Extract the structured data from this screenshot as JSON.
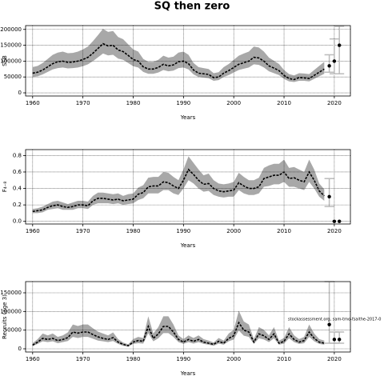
{
  "chart_data": [
    {
      "type": "line",
      "title": "SQ then zero",
      "ylabel": "SSB",
      "xlabel": "Years",
      "xlim": [
        1958.6,
        2023.2
      ],
      "xticks": [
        1960,
        1970,
        1980,
        1990,
        2000,
        2010,
        2020
      ],
      "ylim": [
        -10000,
        212000
      ],
      "yticks": [
        0,
        50000,
        100000,
        150000,
        200000
      ],
      "grid": true,
      "x": [
        1960,
        1961,
        1962,
        1963,
        1964,
        1965,
        1966,
        1967,
        1968,
        1969,
        1970,
        1971,
        1972,
        1973,
        1974,
        1975,
        1976,
        1977,
        1978,
        1979,
        1980,
        1981,
        1982,
        1983,
        1984,
        1985,
        1986,
        1987,
        1988,
        1989,
        1990,
        1991,
        1992,
        1993,
        1994,
        1995,
        1996,
        1997,
        1998,
        1999,
        2000,
        2001,
        2002,
        2003,
        2004,
        2005,
        2006,
        2007,
        2008,
        2009,
        2010,
        2011,
        2012,
        2013,
        2014,
        2015,
        2016,
        2017,
        2018
      ],
      "color": "#000000",
      "band_color": "#a8a8a8",
      "values": [
        62000,
        65000,
        72000,
        82000,
        92000,
        98000,
        100000,
        96000,
        97000,
        100000,
        105000,
        112000,
        125000,
        140000,
        155000,
        148000,
        150000,
        135000,
        130000,
        118000,
        105000,
        100000,
        82000,
        75000,
        75000,
        80000,
        90000,
        85000,
        88000,
        98000,
        100000,
        92000,
        72000,
        62000,
        60000,
        58000,
        48000,
        50000,
        62000,
        70000,
        80000,
        90000,
        95000,
        100000,
        112000,
        110000,
        100000,
        85000,
        78000,
        70000,
        55000,
        45000,
        42000,
        48000,
        47000,
        45000,
        55000,
        65000,
        75000
      ],
      "lower": [
        50000,
        52000,
        58000,
        66000,
        74000,
        78000,
        80000,
        77000,
        78000,
        80000,
        84000,
        90000,
        100000,
        112000,
        124000,
        118000,
        120000,
        108000,
        104000,
        94000,
        84000,
        80000,
        66000,
        60000,
        60000,
        64000,
        72000,
        68000,
        70000,
        78000,
        80000,
        74000,
        58000,
        50000,
        48000,
        46000,
        38000,
        40000,
        50000,
        56000,
        64000,
        72000,
        76000,
        80000,
        90000,
        88000,
        80000,
        68000,
        62000,
        56000,
        44000,
        36000,
        34000,
        38000,
        38000,
        36000,
        44000,
        52000,
        60000
      ],
      "upper": [
        81000,
        85000,
        94000,
        107000,
        120000,
        127000,
        130000,
        125000,
        126000,
        130000,
        137000,
        146000,
        163000,
        182000,
        202000,
        192000,
        195000,
        176000,
        169000,
        153000,
        137000,
        130000,
        107000,
        98000,
        98000,
        104000,
        117000,
        111000,
        114000,
        127000,
        130000,
        120000,
        94000,
        81000,
        78000,
        75000,
        62000,
        65000,
        81000,
        91000,
        104000,
        117000,
        124000,
        130000,
        146000,
        143000,
        130000,
        111000,
        101000,
        91000,
        72000,
        59000,
        55000,
        62000,
        61000,
        59000,
        72000,
        85000,
        98000
      ],
      "projection": {
        "x": [
          2019,
          2020,
          2021
        ],
        "values": [
          85000,
          100000,
          150000
        ],
        "lower": [
          65000,
          60000,
          60000
        ],
        "upper": [
          120000,
          170000,
          210000
        ],
        "color": "#000000",
        "bar_color": "#bbbbbb"
      }
    },
    {
      "type": "line",
      "ylabel": "F₄₋₈",
      "xlabel": "Years",
      "xlim": [
        1958.6,
        2023.2
      ],
      "xticks": [
        1960,
        1970,
        1980,
        1990,
        2000,
        2010,
        2020
      ],
      "ylim": [
        -0.032,
        0.872
      ],
      "yticks": [
        {
          "value": 0,
          "label": "0.0"
        },
        0.2,
        0.4,
        0.6,
        0.8
      ],
      "grid": true,
      "x": [
        1960,
        1961,
        1962,
        1963,
        1964,
        1965,
        1966,
        1967,
        1968,
        1969,
        1970,
        1971,
        1972,
        1973,
        1974,
        1975,
        1976,
        1977,
        1978,
        1979,
        1980,
        1981,
        1982,
        1983,
        1984,
        1985,
        1986,
        1987,
        1988,
        1989,
        1990,
        1991,
        1992,
        1993,
        1994,
        1995,
        1996,
        1997,
        1998,
        1999,
        2000,
        2001,
        2002,
        2003,
        2004,
        2005,
        2006,
        2007,
        2008,
        2009,
        2010,
        2011,
        2012,
        2013,
        2014,
        2015,
        2016,
        2017,
        2018
      ],
      "color": "#000000",
      "band_color": "#a8a8a8",
      "values": [
        0.12,
        0.13,
        0.14,
        0.17,
        0.19,
        0.2,
        0.18,
        0.17,
        0.18,
        0.2,
        0.2,
        0.19,
        0.25,
        0.28,
        0.28,
        0.27,
        0.26,
        0.27,
        0.25,
        0.26,
        0.27,
        0.33,
        0.35,
        0.42,
        0.43,
        0.43,
        0.48,
        0.47,
        0.43,
        0.4,
        0.5,
        0.63,
        0.57,
        0.5,
        0.45,
        0.46,
        0.4,
        0.37,
        0.36,
        0.37,
        0.38,
        0.47,
        0.43,
        0.4,
        0.4,
        0.42,
        0.52,
        0.54,
        0.56,
        0.56,
        0.6,
        0.52,
        0.53,
        0.5,
        0.48,
        0.6,
        0.5,
        0.37,
        0.31
      ],
      "lower": [
        0.1,
        0.1,
        0.11,
        0.14,
        0.15,
        0.16,
        0.14,
        0.14,
        0.14,
        0.16,
        0.16,
        0.15,
        0.2,
        0.22,
        0.22,
        0.22,
        0.21,
        0.22,
        0.2,
        0.21,
        0.22,
        0.26,
        0.28,
        0.34,
        0.34,
        0.34,
        0.38,
        0.38,
        0.34,
        0.32,
        0.4,
        0.5,
        0.46,
        0.4,
        0.36,
        0.37,
        0.32,
        0.3,
        0.29,
        0.3,
        0.3,
        0.38,
        0.34,
        0.32,
        0.32,
        0.34,
        0.42,
        0.43,
        0.45,
        0.45,
        0.48,
        0.42,
        0.42,
        0.4,
        0.38,
        0.48,
        0.4,
        0.3,
        0.25
      ],
      "upper": [
        0.15,
        0.16,
        0.18,
        0.21,
        0.24,
        0.25,
        0.23,
        0.21,
        0.23,
        0.25,
        0.25,
        0.24,
        0.31,
        0.35,
        0.35,
        0.34,
        0.33,
        0.34,
        0.31,
        0.33,
        0.34,
        0.41,
        0.44,
        0.53,
        0.54,
        0.54,
        0.6,
        0.59,
        0.54,
        0.5,
        0.63,
        0.79,
        0.71,
        0.63,
        0.56,
        0.58,
        0.5,
        0.46,
        0.45,
        0.46,
        0.48,
        0.59,
        0.54,
        0.5,
        0.5,
        0.53,
        0.65,
        0.68,
        0.7,
        0.7,
        0.75,
        0.65,
        0.66,
        0.63,
        0.6,
        0.75,
        0.63,
        0.46,
        0.39
      ],
      "projection": {
        "x": [
          2019,
          2020,
          2021
        ],
        "values": [
          0.3,
          0,
          0
        ],
        "lower": [
          0.18,
          null,
          null
        ],
        "upper": [
          0.52,
          null,
          null
        ],
        "color": "#000000",
        "bar_color": "#bbbbbb"
      }
    },
    {
      "type": "line",
      "ylabel": "Recruits (age 3)",
      "xlabel": "Years",
      "xlim": [
        1958.6,
        2023.2
      ],
      "xticks": [
        1960,
        1970,
        1980,
        1990,
        2000,
        2010,
        2020
      ],
      "ylim": [
        -8570,
        180000
      ],
      "yticks": [
        0,
        50000,
        100000,
        150000
      ],
      "grid": true,
      "annotation": "stockassessment.org, sam-tmo-fsaithe-2017-0",
      "x": [
        1960,
        1961,
        1962,
        1963,
        1964,
        1965,
        1966,
        1967,
        1968,
        1969,
        1970,
        1971,
        1972,
        1973,
        1974,
        1975,
        1976,
        1977,
        1978,
        1979,
        1980,
        1981,
        1982,
        1983,
        1984,
        1985,
        1986,
        1987,
        1988,
        1989,
        1990,
        1991,
        1992,
        1993,
        1994,
        1995,
        1996,
        1997,
        1998,
        1999,
        2000,
        2001,
        2002,
        2003,
        2004,
        2005,
        2006,
        2007,
        2008,
        2009,
        2010,
        2011,
        2012,
        2013,
        2014,
        2015,
        2016,
        2017,
        2018
      ],
      "color": "#000000",
      "band_color": "#a8a8a8",
      "values": [
        10000,
        18000,
        28000,
        25000,
        28000,
        22000,
        25000,
        30000,
        45000,
        42000,
        45000,
        45000,
        38000,
        32000,
        28000,
        25000,
        30000,
        18000,
        12000,
        8000,
        18000,
        22000,
        20000,
        60000,
        28000,
        40000,
        60000,
        60000,
        45000,
        25000,
        18000,
        25000,
        20000,
        25000,
        18000,
        15000,
        12000,
        20000,
        15000,
        28000,
        35000,
        70000,
        50000,
        45000,
        18000,
        40000,
        35000,
        25000,
        40000,
        15000,
        20000,
        40000,
        25000,
        18000,
        22000,
        45000,
        28000,
        18000,
        15000
      ],
      "lower": [
        7000,
        13000,
        20000,
        18000,
        20000,
        15000,
        18000,
        21000,
        32000,
        29000,
        32000,
        32000,
        27000,
        22000,
        20000,
        18000,
        21000,
        13000,
        8000,
        6000,
        13000,
        15000,
        14000,
        42000,
        20000,
        28000,
        42000,
        42000,
        32000,
        18000,
        13000,
        18000,
        14000,
        18000,
        13000,
        11000,
        8000,
        14000,
        11000,
        20000,
        25000,
        49000,
        35000,
        32000,
        13000,
        28000,
        25000,
        18000,
        28000,
        11000,
        14000,
        28000,
        18000,
        13000,
        15000,
        32000,
        20000,
        13000,
        11000
      ],
      "upper": [
        15000,
        26000,
        41000,
        36000,
        41000,
        32000,
        36000,
        44000,
        65000,
        61000,
        65000,
        65000,
        55000,
        46000,
        41000,
        36000,
        44000,
        26000,
        17000,
        12000,
        26000,
        32000,
        29000,
        87000,
        41000,
        58000,
        87000,
        87000,
        65000,
        36000,
        26000,
        36000,
        29000,
        36000,
        26000,
        22000,
        17000,
        29000,
        22000,
        41000,
        51000,
        102000,
        73000,
        65000,
        26000,
        58000,
        51000,
        36000,
        58000,
        22000,
        29000,
        58000,
        36000,
        26000,
        32000,
        65000,
        41000,
        26000,
        22000
      ],
      "projection": {
        "x": [
          2019,
          2020,
          2021
        ],
        "values": [
          65000,
          25000,
          25000
        ],
        "lower": [
          15000,
          15000,
          15000
        ],
        "upper": [
          180000,
          45000,
          45000
        ],
        "color": "#000000",
        "bar_color": "#bbbbbb"
      }
    }
  ]
}
